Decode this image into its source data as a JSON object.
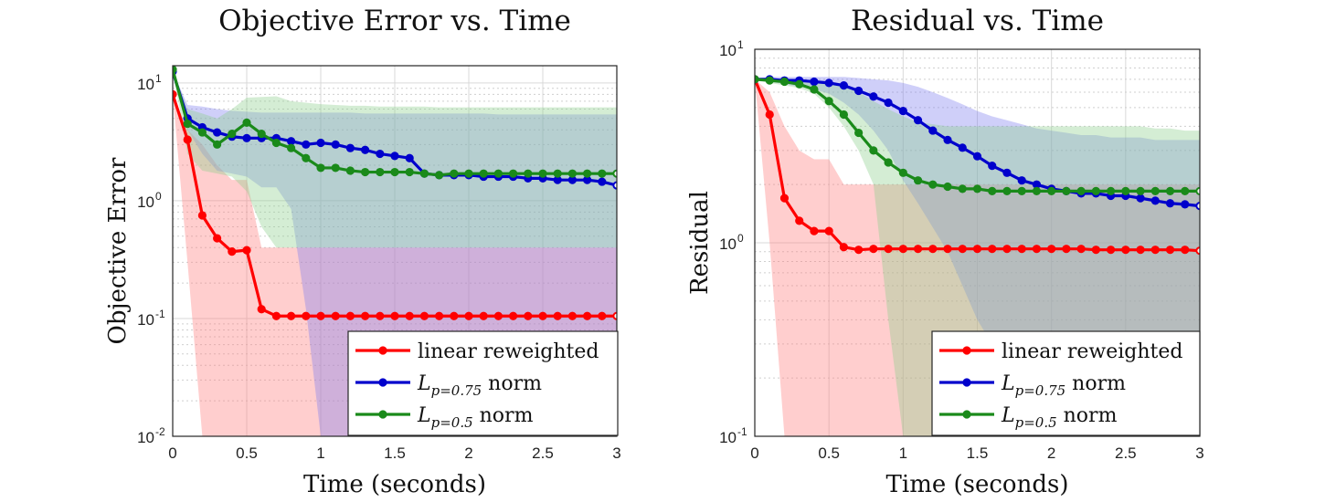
{
  "chart_data": [
    {
      "type": "line",
      "title": "Objective Error vs. Time",
      "xlabel": "Time (seconds)",
      "ylabel": "Objective Error",
      "yscale": "log",
      "xlim": [
        0,
        3
      ],
      "ylim": [
        0.01,
        14
      ],
      "xticks": [
        "0",
        "0.5",
        "1",
        "1.5",
        "2",
        "2.5",
        "3"
      ],
      "yticks": [
        {
          "base": "10",
          "exp": "-2",
          "value": 0.01
        },
        {
          "base": "10",
          "exp": "-1",
          "value": 0.1
        },
        {
          "base": "10",
          "exp": "0",
          "value": 1
        },
        {
          "base": "10",
          "exp": "1",
          "value": 10
        }
      ],
      "grid": true,
      "legend": "bottom-right",
      "x": [
        0,
        0.1,
        0.2,
        0.3,
        0.4,
        0.5,
        0.6,
        0.7,
        0.8,
        0.9,
        1.0,
        1.1,
        1.2,
        1.3,
        1.4,
        1.5,
        1.6,
        1.7,
        1.8,
        1.9,
        2.0,
        2.1,
        2.2,
        2.3,
        2.4,
        2.5,
        2.6,
        2.7,
        2.8,
        2.9,
        3.0
      ],
      "series": [
        {
          "name": "linear reweighted",
          "name_main": "linear reweighted",
          "name_sub": "",
          "name_suffix": "",
          "color": "#ff0000",
          "band_color": "#ff7f7f",
          "values": [
            8.0,
            3.3,
            0.75,
            0.48,
            0.37,
            0.38,
            0.12,
            0.105,
            0.105,
            0.105,
            0.105,
            0.105,
            0.105,
            0.105,
            0.105,
            0.105,
            0.105,
            0.105,
            0.105,
            0.105,
            0.105,
            0.105,
            0.105,
            0.105,
            0.105,
            0.105,
            0.105,
            0.105,
            0.105,
            0.105,
            0.105
          ],
          "band_upper": [
            8.0,
            4.0,
            3.0,
            2.0,
            1.5,
            1.5,
            0.4,
            0.4,
            0.4,
            0.4,
            0.4,
            0.4,
            0.4,
            0.4,
            0.4,
            0.4,
            0.4,
            0.4,
            0.4,
            0.4,
            0.4,
            0.4,
            0.4,
            0.4,
            0.4,
            0.4,
            0.4,
            0.4,
            0.4,
            0.4,
            0.4
          ],
          "band_lower": [
            8.0,
            0.3,
            0.005,
            0.005,
            0.005,
            0.005,
            0.005,
            0.005,
            0.005,
            0.005,
            0.005,
            0.005,
            0.005,
            0.005,
            0.005,
            0.005,
            0.005,
            0.005,
            0.005,
            0.005,
            0.005,
            0.005,
            0.005,
            0.005,
            0.005,
            0.005,
            0.005,
            0.005,
            0.005,
            0.005,
            0.005
          ]
        },
        {
          "name": "L p=0.75 norm",
          "name_main": "L",
          "name_sub": "p=0.75",
          "name_suffix": " norm",
          "color": "#0000cc",
          "band_color": "#8080ee",
          "values": [
            12.5,
            5.0,
            4.2,
            3.8,
            3.5,
            3.4,
            3.4,
            3.4,
            3.2,
            3.0,
            3.1,
            3.0,
            2.8,
            2.7,
            2.5,
            2.4,
            2.3,
            1.7,
            1.65,
            1.65,
            1.65,
            1.6,
            1.6,
            1.6,
            1.55,
            1.55,
            1.5,
            1.5,
            1.5,
            1.45,
            1.35
          ],
          "band_upper": [
            12.5,
            6.5,
            6.3,
            6.0,
            5.8,
            5.7,
            5.6,
            5.6,
            5.6,
            5.6,
            5.6,
            5.6,
            5.6,
            5.5,
            5.5,
            5.5,
            5.5,
            5.5,
            5.5,
            5.5,
            5.5,
            5.5,
            5.4,
            5.4,
            5.4,
            5.4,
            5.4,
            5.4,
            5.4,
            5.4,
            5.4
          ],
          "band_lower": [
            12.5,
            4.0,
            2.5,
            1.8,
            1.7,
            1.6,
            1.3,
            1.3,
            0.85,
            0.12,
            0.006,
            0.005,
            0.005,
            0.005,
            0.005,
            0.005,
            0.005,
            0.005,
            0.005,
            0.005,
            0.005,
            0.005,
            0.005,
            0.005,
            0.005,
            0.005,
            0.005,
            0.005,
            0.005,
            0.005,
            0.005
          ]
        },
        {
          "name": "L p=0.5 norm",
          "name_main": "L",
          "name_sub": "p=0.5",
          "name_suffix": " norm",
          "color": "#1a8a1a",
          "band_color": "#8fd08f",
          "values": [
            13.0,
            4.5,
            3.8,
            3.0,
            3.7,
            4.6,
            3.7,
            3.1,
            2.8,
            2.3,
            1.9,
            1.9,
            1.8,
            1.75,
            1.75,
            1.75,
            1.75,
            1.7,
            1.65,
            1.7,
            1.7,
            1.7,
            1.7,
            1.7,
            1.7,
            1.7,
            1.7,
            1.7,
            1.7,
            1.7,
            1.7
          ],
          "band_upper": [
            13.0,
            6.0,
            5.5,
            5.0,
            6.0,
            7.5,
            7.6,
            7.7,
            7.0,
            6.8,
            6.6,
            6.5,
            6.4,
            6.4,
            6.3,
            6.3,
            6.3,
            6.3,
            6.2,
            6.2,
            6.2,
            6.2,
            6.2,
            6.2,
            6.2,
            6.2,
            6.2,
            6.2,
            6.2,
            6.2,
            6.2
          ],
          "band_lower": [
            13.0,
            2.5,
            1.8,
            1.7,
            1.6,
            1.2,
            0.6,
            0.4,
            0.4,
            0.4,
            0.4,
            0.4,
            0.4,
            0.4,
            0.4,
            0.4,
            0.4,
            0.4,
            0.4,
            0.4,
            0.4,
            0.4,
            0.4,
            0.4,
            0.4,
            0.4,
            0.4,
            0.4,
            0.4,
            0.4,
            0.4
          ]
        }
      ]
    },
    {
      "type": "line",
      "title": "Residual vs. Time",
      "xlabel": "Time (seconds)",
      "ylabel": "Residual",
      "yscale": "log",
      "xlim": [
        0,
        3
      ],
      "ylim": [
        0.1,
        10
      ],
      "xticks": [
        "0",
        "0.5",
        "1",
        "1.5",
        "2",
        "2.5",
        "3"
      ],
      "yticks": [
        {
          "base": "10",
          "exp": "-1",
          "value": 0.1
        },
        {
          "base": "10",
          "exp": "0",
          "value": 1
        },
        {
          "base": "10",
          "exp": "1",
          "value": 10
        }
      ],
      "grid": true,
      "legend": "bottom-right",
      "x": [
        0,
        0.1,
        0.2,
        0.3,
        0.4,
        0.5,
        0.6,
        0.7,
        0.8,
        0.9,
        1.0,
        1.1,
        1.2,
        1.3,
        1.4,
        1.5,
        1.6,
        1.7,
        1.8,
        1.9,
        2.0,
        2.1,
        2.2,
        2.3,
        2.4,
        2.5,
        2.6,
        2.7,
        2.8,
        2.9,
        3.0
      ],
      "series": [
        {
          "name": "linear reweighted",
          "name_main": "linear reweighted",
          "name_sub": "",
          "name_suffix": "",
          "color": "#ff0000",
          "band_color": "#ff7f7f",
          "values": [
            7.0,
            4.6,
            1.7,
            1.3,
            1.15,
            1.15,
            0.95,
            0.92,
            0.93,
            0.93,
            0.93,
            0.93,
            0.93,
            0.93,
            0.93,
            0.93,
            0.93,
            0.93,
            0.93,
            0.93,
            0.93,
            0.93,
            0.93,
            0.92,
            0.92,
            0.92,
            0.92,
            0.92,
            0.92,
            0.92,
            0.91
          ],
          "band_upper": [
            7.0,
            6.0,
            4.0,
            3.0,
            2.7,
            2.7,
            2.0,
            2.0,
            2.0,
            2.0,
            2.0,
            2.0,
            2.0,
            2.0,
            2.0,
            2.0,
            2.0,
            2.0,
            2.0,
            2.0,
            2.0,
            2.0,
            2.0,
            2.0,
            2.0,
            2.0,
            2.0,
            2.0,
            2.0,
            2.0,
            2.0
          ],
          "band_lower": [
            7.0,
            1.0,
            0.05,
            0.05,
            0.05,
            0.05,
            0.05,
            0.05,
            0.05,
            0.05,
            0.05,
            0.05,
            0.05,
            0.05,
            0.05,
            0.05,
            0.05,
            0.05,
            0.05,
            0.05,
            0.05,
            0.05,
            0.05,
            0.05,
            0.05,
            0.05,
            0.05,
            0.05,
            0.05,
            0.05,
            0.05
          ]
        },
        {
          "name": "L p=0.75 norm",
          "name_main": "L",
          "name_sub": "p=0.75",
          "name_suffix": " norm",
          "color": "#0000cc",
          "band_color": "#8080ee",
          "values": [
            7.0,
            7.0,
            6.9,
            6.9,
            6.8,
            6.7,
            6.5,
            6.1,
            5.7,
            5.3,
            4.8,
            4.3,
            3.8,
            3.4,
            3.1,
            2.8,
            2.5,
            2.3,
            2.1,
            2.0,
            1.9,
            1.85,
            1.8,
            1.8,
            1.75,
            1.75,
            1.7,
            1.65,
            1.6,
            1.58,
            1.55
          ],
          "band_upper": [
            7.0,
            7.2,
            7.2,
            7.2,
            7.2,
            7.2,
            7.2,
            7.1,
            7.0,
            6.9,
            6.7,
            6.4,
            6.0,
            5.6,
            5.2,
            4.8,
            4.5,
            4.3,
            4.1,
            3.9,
            3.8,
            3.7,
            3.6,
            3.6,
            3.5,
            3.5,
            3.5,
            3.4,
            3.4,
            3.4,
            3.4
          ],
          "band_lower": [
            7.0,
            6.8,
            6.6,
            6.4,
            6.2,
            5.9,
            5.3,
            4.6,
            3.8,
            3.0,
            2.1,
            1.6,
            1.2,
            0.9,
            0.6,
            0.4,
            0.3,
            0.2,
            0.1,
            0.05,
            0.05,
            0.05,
            0.05,
            0.05,
            0.05,
            0.05,
            0.05,
            0.05,
            0.05,
            0.05,
            0.05
          ]
        },
        {
          "name": "L p=0.5 norm",
          "name_main": "L",
          "name_sub": "p=0.5",
          "name_suffix": " norm",
          "color": "#1a8a1a",
          "band_color": "#8fd08f",
          "values": [
            7.0,
            6.9,
            6.8,
            6.6,
            6.2,
            5.4,
            4.6,
            3.7,
            3.0,
            2.6,
            2.3,
            2.1,
            2.0,
            1.95,
            1.9,
            1.9,
            1.85,
            1.85,
            1.85,
            1.85,
            1.85,
            1.85,
            1.85,
            1.85,
            1.85,
            1.85,
            1.85,
            1.85,
            1.85,
            1.85,
            1.85
          ],
          "band_upper": [
            7.0,
            7.0,
            7.0,
            6.9,
            6.9,
            6.8,
            6.6,
            6.0,
            5.4,
            4.9,
            4.5,
            4.2,
            4.1,
            4.0,
            4.0,
            4.0,
            4.0,
            4.0,
            4.0,
            4.0,
            4.0,
            4.0,
            4.0,
            4.0,
            4.0,
            4.0,
            4.0,
            3.9,
            3.9,
            3.8,
            3.8
          ],
          "band_lower": [
            7.0,
            6.7,
            6.5,
            6.3,
            5.9,
            5.0,
            4.0,
            3.0,
            2.0,
            0.4,
            0.09,
            0.05,
            0.05,
            0.05,
            0.05,
            0.05,
            0.05,
            0.05,
            0.05,
            0.05,
            0.05,
            0.05,
            0.05,
            0.05,
            0.05,
            0.05,
            0.05,
            0.05,
            0.05,
            0.05,
            0.05
          ]
        }
      ]
    }
  ]
}
